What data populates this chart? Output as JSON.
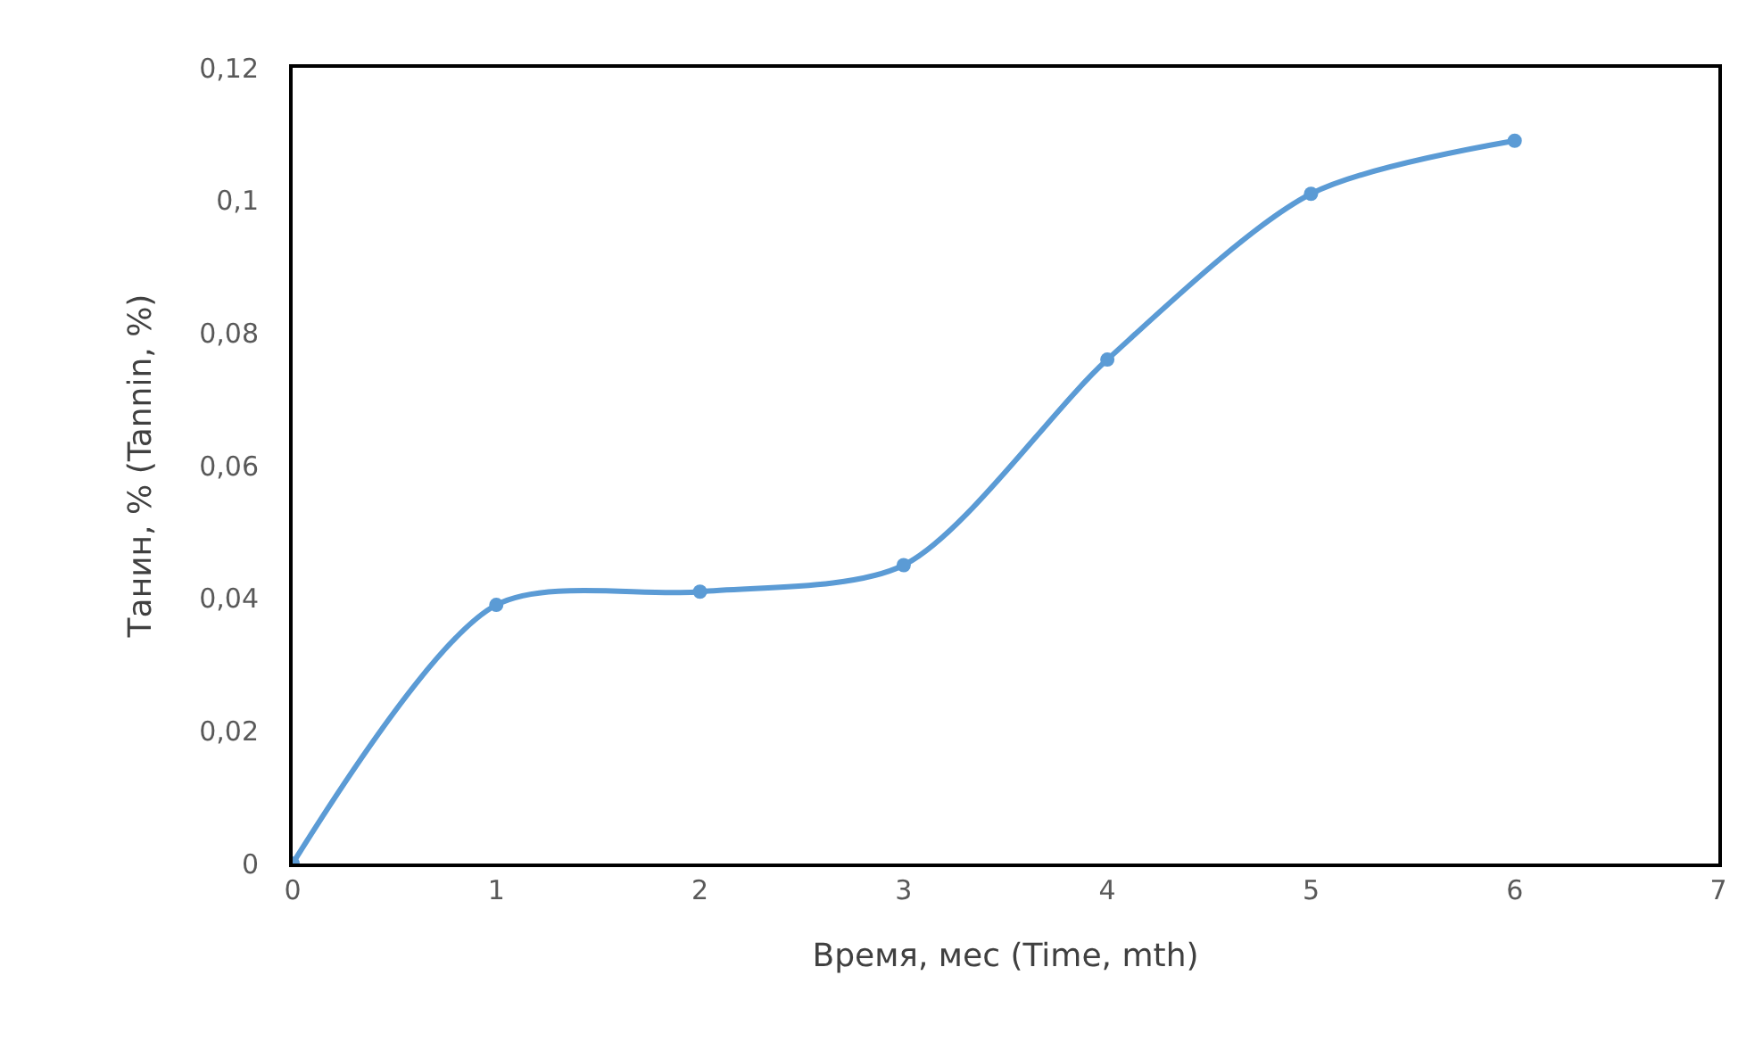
{
  "chart_data": {
    "type": "line",
    "xlabel": "Время, мес (Time, mth)",
    "ylabel": "Танин, % (Tannin, %)",
    "x": [
      0,
      1,
      2,
      3,
      4,
      5,
      6
    ],
    "series": [
      {
        "color": "#5b9bd5",
        "values": [
          0,
          0.039,
          0.041,
          0.045,
          0.076,
          0.101,
          0.109
        ]
      }
    ],
    "xlim": [
      0,
      7
    ],
    "xticks": [
      0,
      1,
      2,
      3,
      4,
      5,
      6,
      7
    ],
    "ylim": [
      0,
      0.12
    ],
    "yticks": [
      0,
      {
        "value": 0.02,
        "label": "0,02"
      },
      {
        "value": 0.04,
        "label": "0,04"
      },
      {
        "value": 0.06,
        "label": "0,06"
      },
      {
        "value": 0.08,
        "label": "0,08"
      },
      {
        "value": 0.1,
        "label": "0,1"
      },
      {
        "value": 0.12,
        "label": "0,12"
      }
    ],
    "grid": false,
    "marker": "circle",
    "line_style": "solid"
  }
}
